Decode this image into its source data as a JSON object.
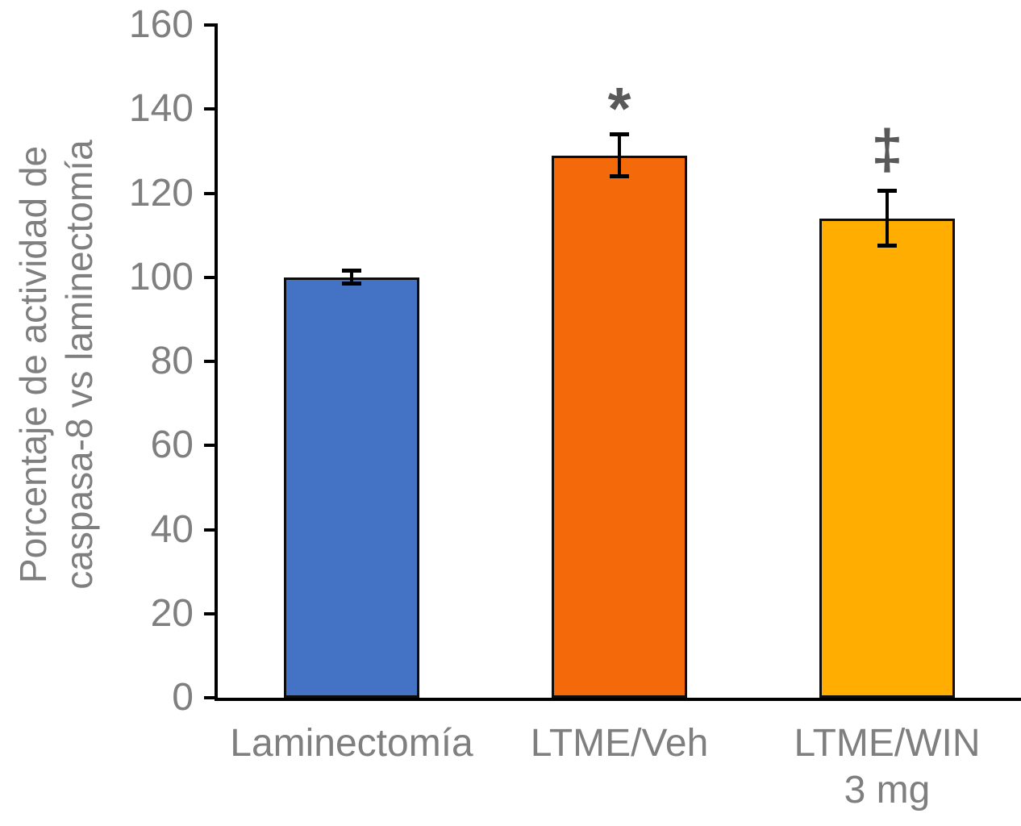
{
  "chart_data": {
    "type": "bar",
    "categories": [
      "Laminectomía",
      "LTME/Veh",
      "LTME/WIN 3 mg"
    ],
    "category_label_lines": [
      [
        "Laminectomía"
      ],
      [
        "LTME/Veh"
      ],
      [
        "LTME/WIN",
        "3 mg"
      ]
    ],
    "values": [
      100,
      129,
      114
    ],
    "errors": [
      1.5,
      5,
      6.5
    ],
    "annotations": [
      "",
      "*",
      "‡"
    ],
    "title": "",
    "xlabel": "",
    "ylabel": "Porcentaje de actividad de caspasa-8 vs laminectomía",
    "ylabel_lines": [
      "Porcentaje de actividad de",
      "caspasa-8 vs laminectomía"
    ],
    "ylim": [
      0,
      160
    ],
    "yticks": [
      0,
      20,
      40,
      60,
      80,
      100,
      120,
      140,
      160
    ],
    "grid": false,
    "legend": false,
    "bar_colors": [
      "#4472C4",
      "#F4690A",
      "#FFAD00"
    ],
    "bar_outline_color": "#0D0D0D",
    "error_bar_color": "#000000",
    "axis_color": "#000000",
    "text_color": "#7F7F7F",
    "annotation_color": "#595959"
  }
}
